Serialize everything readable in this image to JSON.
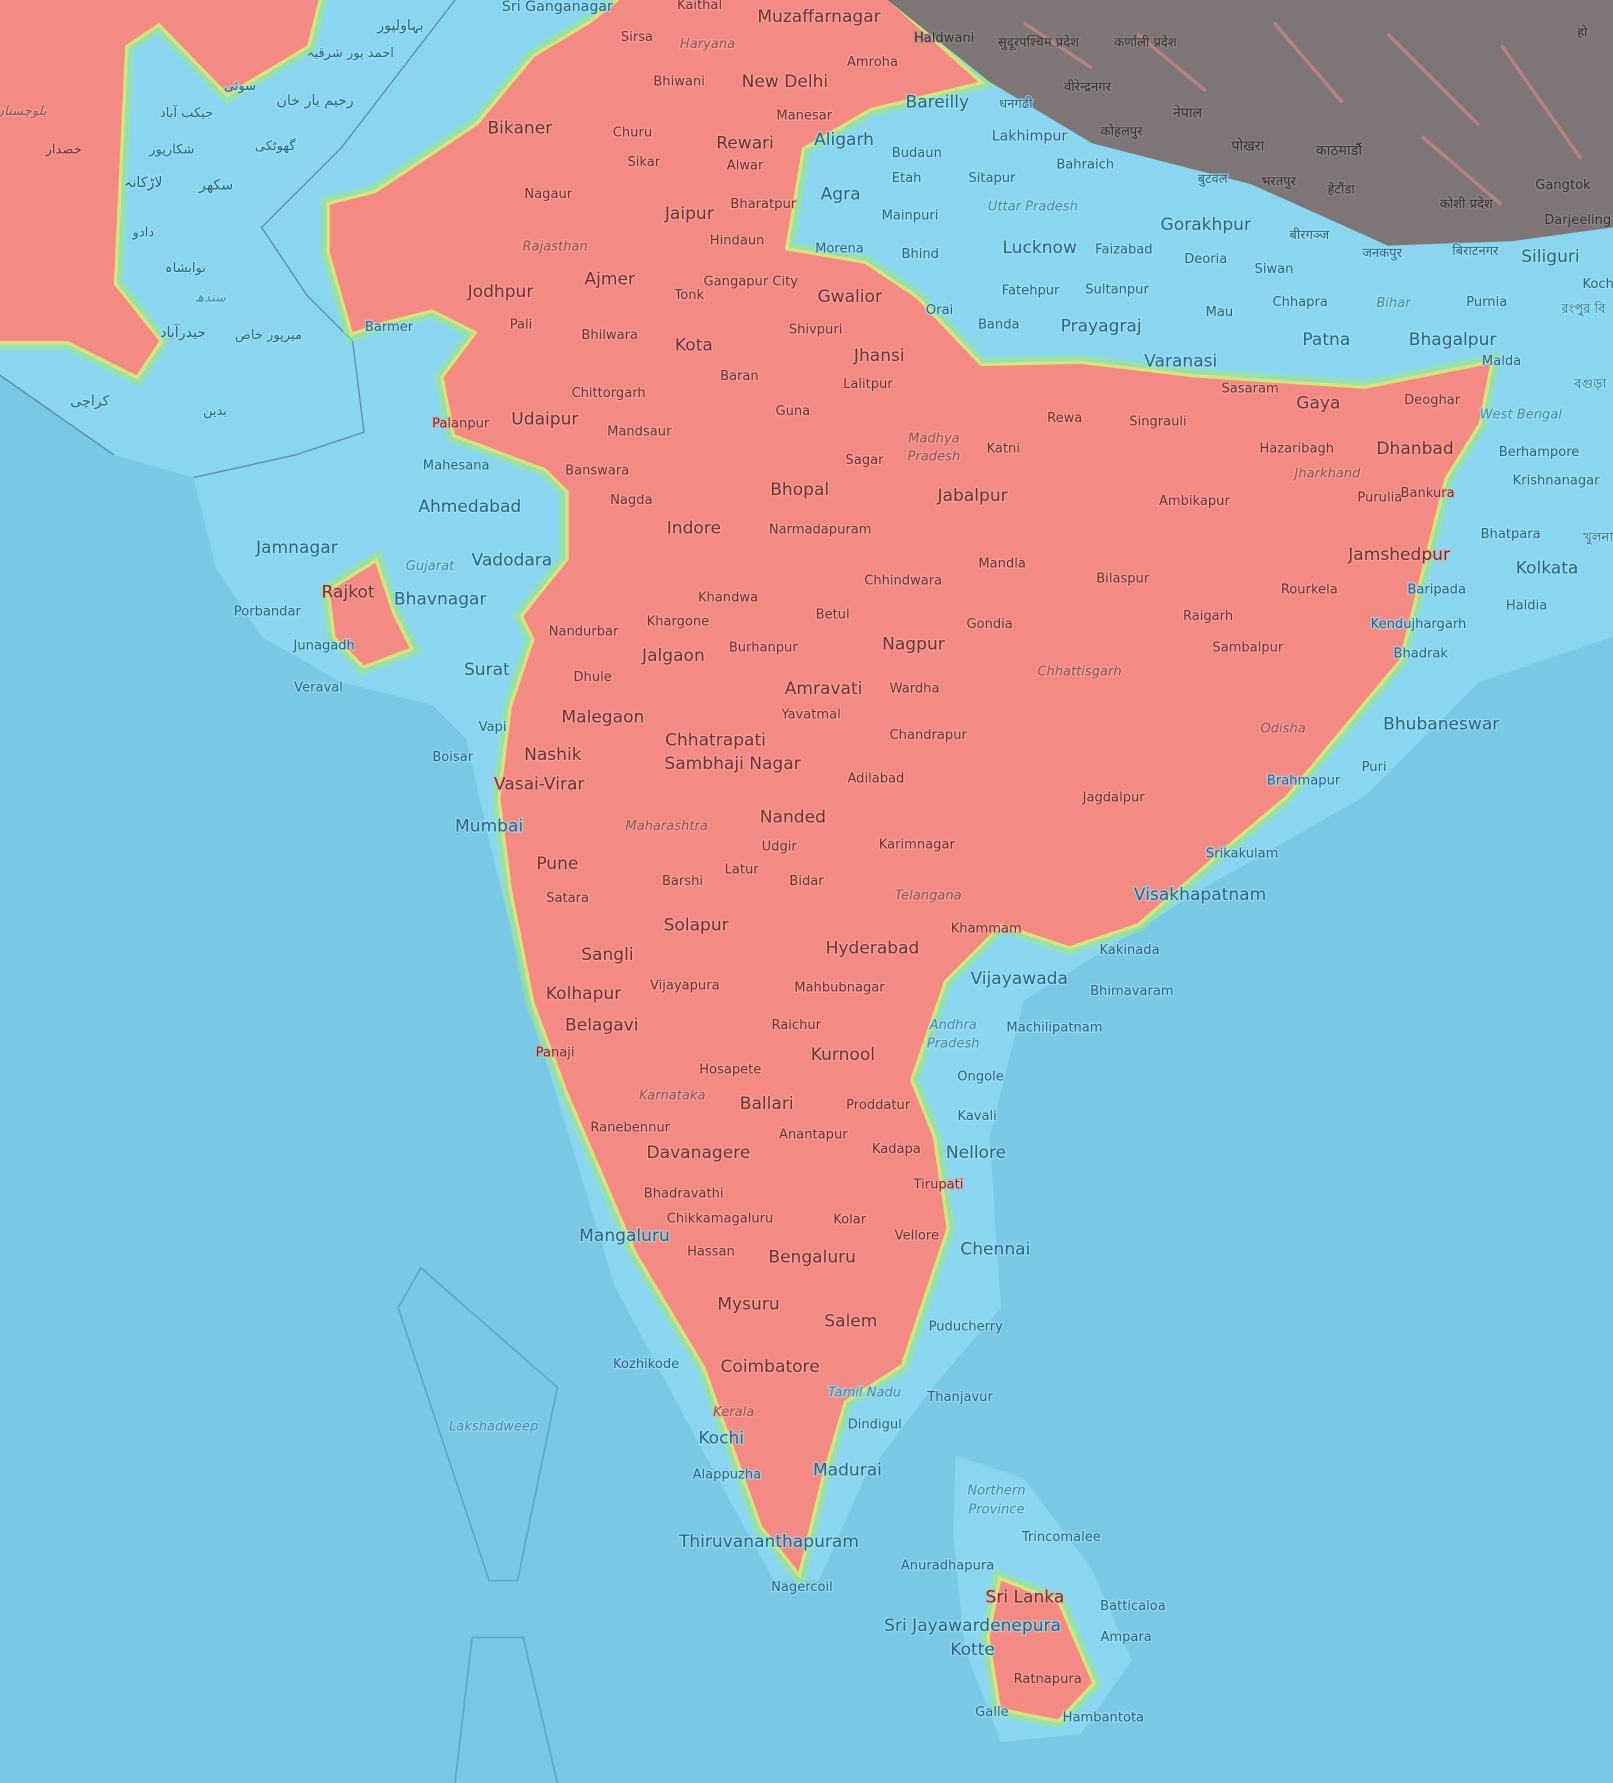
{
  "map": {
    "colors": {
      "sea": "#78c8e6",
      "land_low": "#8ad6f0",
      "high": "#f38b84",
      "edge_green": "#9ee87c",
      "edge_yellow": "#eae46c",
      "mountain": "#7e7676"
    },
    "legend": "none"
  },
  "labels": [
    {
      "text": "بہاولپور",
      "kind": "city"
    },
    {
      "text": "احمد پور شرقیہ",
      "kind": "small"
    },
    {
      "text": "سوئی",
      "kind": "small"
    },
    {
      "text": "رحیم یار خان",
      "kind": "city"
    },
    {
      "text": "جیکب آباد",
      "kind": "small"
    },
    {
      "text": "بلوچستان",
      "kind": "region"
    },
    {
      "text": "خضدار",
      "kind": "small"
    },
    {
      "text": "شکارپور",
      "kind": "small"
    },
    {
      "text": "گھوٹکی",
      "kind": "small"
    },
    {
      "text": "لاڑکانہ",
      "kind": "city"
    },
    {
      "text": "سکھر",
      "kind": "city"
    },
    {
      "text": "دادو",
      "kind": "small"
    },
    {
      "text": "نوابشاہ",
      "kind": "small"
    },
    {
      "text": "سندھ",
      "kind": "region"
    },
    {
      "text": "حیدرآباد",
      "kind": "city"
    },
    {
      "text": "میرپور خاص",
      "kind": "small"
    },
    {
      "text": "کراچی",
      "kind": "city"
    },
    {
      "text": "بدین",
      "kind": "small"
    },
    {
      "text": "सुदूरपश्चिम प्रदेश",
      "kind": "small"
    },
    {
      "text": "कर्णाली प्रदेश",
      "kind": "small"
    },
    {
      "text": "वीरेन्द्रनगर",
      "kind": "small"
    },
    {
      "text": "धनगढी",
      "kind": "small"
    },
    {
      "text": "नेपाल",
      "kind": "city"
    },
    {
      "text": "कोहलपुर",
      "kind": "small"
    },
    {
      "text": "पोखरा",
      "kind": "city"
    },
    {
      "text": "काठमाडौं",
      "kind": "city"
    },
    {
      "text": "बुटवल",
      "kind": "small"
    },
    {
      "text": "भरतपुर",
      "kind": "small"
    },
    {
      "text": "हेटौंडा",
      "kind": "small"
    },
    {
      "text": "कोशी प्रदेश",
      "kind": "small"
    },
    {
      "text": "Gangtok",
      "kind": "small"
    },
    {
      "text": "Darjeeling",
      "kind": "small"
    },
    {
      "text": "बीरगञ्ज",
      "kind": "small"
    },
    {
      "text": "जनकपुर",
      "kind": "small"
    },
    {
      "text": "बिराटनगर",
      "kind": "small"
    },
    {
      "text": "Koch",
      "kind": "small"
    },
    {
      "text": "हो",
      "kind": "small"
    },
    {
      "text": "রংপুর বি",
      "kind": "small"
    },
    {
      "text": "বগুড়া",
      "kind": "small"
    },
    {
      "text": "খুলনা",
      "kind": "small"
    },
    {
      "text": "Sri Ganganagar",
      "kind": "city"
    },
    {
      "text": "Kaithal",
      "kind": "small"
    },
    {
      "text": "Muzaffarnagar",
      "kind": "major"
    },
    {
      "text": "Haldwani",
      "kind": "small"
    },
    {
      "text": "Sirsa",
      "kind": "small"
    },
    {
      "text": "Haryana",
      "kind": "region"
    },
    {
      "text": "Amroha",
      "kind": "small"
    },
    {
      "text": "New Delhi",
      "kind": "major"
    },
    {
      "text": "Bhiwani",
      "kind": "small"
    },
    {
      "text": "Bareilly",
      "kind": "major"
    },
    {
      "text": "Manesar",
      "kind": "small"
    },
    {
      "text": "Bikaner",
      "kind": "major"
    },
    {
      "text": "Churu",
      "kind": "small"
    },
    {
      "text": "Rewari",
      "kind": "major"
    },
    {
      "text": "Aligarh",
      "kind": "major"
    },
    {
      "text": "Lakhimpur",
      "kind": "city"
    },
    {
      "text": "Budaun",
      "kind": "small"
    },
    {
      "text": "Sikar",
      "kind": "small"
    },
    {
      "text": "Alwar",
      "kind": "small"
    },
    {
      "text": "Bahraich",
      "kind": "small"
    },
    {
      "text": "Etah",
      "kind": "small"
    },
    {
      "text": "Sitapur",
      "kind": "small"
    },
    {
      "text": "Nagaur",
      "kind": "small"
    },
    {
      "text": "Jaipur",
      "kind": "major"
    },
    {
      "text": "Bharatpur",
      "kind": "small"
    },
    {
      "text": "Agra",
      "kind": "major"
    },
    {
      "text": "Mainpuri",
      "kind": "small"
    },
    {
      "text": "Uttar Pradesh",
      "kind": "region"
    },
    {
      "text": "Gorakhpur",
      "kind": "major"
    },
    {
      "text": "Hindaun",
      "kind": "small"
    },
    {
      "text": "Rajasthan",
      "kind": "region"
    },
    {
      "text": "Morena",
      "kind": "small"
    },
    {
      "text": "Bhind",
      "kind": "small"
    },
    {
      "text": "Lucknow",
      "kind": "major"
    },
    {
      "text": "Faizabad",
      "kind": "small"
    },
    {
      "text": "Deoria",
      "kind": "small"
    },
    {
      "text": "Siwan",
      "kind": "small"
    },
    {
      "text": "Gangapur City",
      "kind": "small"
    },
    {
      "text": "Ajmer",
      "kind": "major"
    },
    {
      "text": "Jodhpur",
      "kind": "major"
    },
    {
      "text": "Tonk",
      "kind": "small"
    },
    {
      "text": "Gwalior",
      "kind": "major"
    },
    {
      "text": "Fatehpur",
      "kind": "small"
    },
    {
      "text": "Sultanpur",
      "kind": "small"
    },
    {
      "text": "Chhapra",
      "kind": "small"
    },
    {
      "text": "Bihar",
      "kind": "region"
    },
    {
      "text": "Purnia",
      "kind": "small"
    },
    {
      "text": "Siliguri",
      "kind": "major"
    },
    {
      "text": "Orai",
      "kind": "small"
    },
    {
      "text": "Mau",
      "kind": "small"
    },
    {
      "text": "Pali",
      "kind": "small"
    },
    {
      "text": "Barmer",
      "kind": "small"
    },
    {
      "text": "Bhilwara",
      "kind": "small"
    },
    {
      "text": "Kota",
      "kind": "major"
    },
    {
      "text": "Shivpuri",
      "kind": "small"
    },
    {
      "text": "Banda",
      "kind": "small"
    },
    {
      "text": "Prayagraj",
      "kind": "major"
    },
    {
      "text": "Patna",
      "kind": "major"
    },
    {
      "text": "Bhagalpur",
      "kind": "major"
    },
    {
      "text": "Jhansi",
      "kind": "major"
    },
    {
      "text": "Varanasi",
      "kind": "major"
    },
    {
      "text": "Malda",
      "kind": "small"
    },
    {
      "text": "Baran",
      "kind": "small"
    },
    {
      "text": "Lalitpur",
      "kind": "small"
    },
    {
      "text": "Chittorgarh",
      "kind": "small"
    },
    {
      "text": "Sasaram",
      "kind": "small"
    },
    {
      "text": "Gaya",
      "kind": "major"
    },
    {
      "text": "Deoghar",
      "kind": "small"
    },
    {
      "text": "Guna",
      "kind": "small"
    },
    {
      "text": "Rewa",
      "kind": "small"
    },
    {
      "text": "Singrauli",
      "kind": "small"
    },
    {
      "text": "Udaipur",
      "kind": "major"
    },
    {
      "text": "Palanpur",
      "kind": "small"
    },
    {
      "text": "Mandsaur",
      "kind": "small"
    },
    {
      "text": "West Bengal",
      "kind": "region"
    },
    {
      "text": "Madhya",
      "kind": "region"
    },
    {
      "text": "Pradesh",
      "kind": "region"
    },
    {
      "text": "Katni",
      "kind": "small"
    },
    {
      "text": "Hazaribagh",
      "kind": "small"
    },
    {
      "text": "Dhanbad",
      "kind": "major"
    },
    {
      "text": "Berhampore",
      "kind": "small"
    },
    {
      "text": "Mahesana",
      "kind": "small"
    },
    {
      "text": "Banswara",
      "kind": "small"
    },
    {
      "text": "Sagar",
      "kind": "small"
    },
    {
      "text": "Jharkhand",
      "kind": "region"
    },
    {
      "text": "Krishnanagar",
      "kind": "small"
    },
    {
      "text": "Bhopal",
      "kind": "major"
    },
    {
      "text": "Jabalpur",
      "kind": "major"
    },
    {
      "text": "Purulia",
      "kind": "small"
    },
    {
      "text": "Bankura",
      "kind": "small"
    },
    {
      "text": "Ambikapur",
      "kind": "small"
    },
    {
      "text": "Ahmedabad",
      "kind": "major"
    },
    {
      "text": "Nagda",
      "kind": "small"
    },
    {
      "text": "Indore",
      "kind": "major"
    },
    {
      "text": "Narmadapuram",
      "kind": "small"
    },
    {
      "text": "Bhatpara",
      "kind": "small"
    },
    {
      "text": "Jamnagar",
      "kind": "major"
    },
    {
      "text": "Gujarat",
      "kind": "region"
    },
    {
      "text": "Vadodara",
      "kind": "major"
    },
    {
      "text": "Mandla",
      "kind": "small"
    },
    {
      "text": "Jamshedpur",
      "kind": "major"
    },
    {
      "text": "Kolkata",
      "kind": "major"
    },
    {
      "text": "Rajkot",
      "kind": "major"
    },
    {
      "text": "Bhavnagar",
      "kind": "major"
    },
    {
      "text": "Khandwa",
      "kind": "small"
    },
    {
      "text": "Chhindwara",
      "kind": "small"
    },
    {
      "text": "Bilaspur",
      "kind": "small"
    },
    {
      "text": "Rourkela",
      "kind": "small"
    },
    {
      "text": "Baripada",
      "kind": "small"
    },
    {
      "text": "Haldia",
      "kind": "small"
    },
    {
      "text": "Porbandar",
      "kind": "small"
    },
    {
      "text": "Khargone",
      "kind": "small"
    },
    {
      "text": "Betul",
      "kind": "small"
    },
    {
      "text": "Gondia",
      "kind": "small"
    },
    {
      "text": "Raigarh",
      "kind": "small"
    },
    {
      "text": "Kendujhargarh",
      "kind": "small"
    },
    {
      "text": "Nandurbar",
      "kind": "small"
    },
    {
      "text": "Junagadh",
      "kind": "small"
    },
    {
      "text": "Jalgaon",
      "kind": "major"
    },
    {
      "text": "Burhanpur",
      "kind": "small"
    },
    {
      "text": "Nagpur",
      "kind": "major"
    },
    {
      "text": "Sambalpur",
      "kind": "small"
    },
    {
      "text": "Bhadrak",
      "kind": "small"
    },
    {
      "text": "Surat",
      "kind": "major"
    },
    {
      "text": "Chhattisgarh",
      "kind": "region"
    },
    {
      "text": "Dhule",
      "kind": "small"
    },
    {
      "text": "Veraval",
      "kind": "small"
    },
    {
      "text": "Amravati",
      "kind": "major"
    },
    {
      "text": "Wardha",
      "kind": "small"
    },
    {
      "text": "Malegaon",
      "kind": "major"
    },
    {
      "text": "Yavatmal",
      "kind": "small"
    },
    {
      "text": "Bhubaneswar",
      "kind": "major"
    },
    {
      "text": "Vapi",
      "kind": "small"
    },
    {
      "text": "Odisha",
      "kind": "region"
    },
    {
      "text": "Chandrapur",
      "kind": "small"
    },
    {
      "text": "Chhatrapati",
      "kind": "major"
    },
    {
      "text": "Sambhaji Nagar",
      "kind": "major"
    },
    {
      "text": "Boisar",
      "kind": "small"
    },
    {
      "text": "Nashik",
      "kind": "major"
    },
    {
      "text": "Adilabad",
      "kind": "small"
    },
    {
      "text": "Puri",
      "kind": "small"
    },
    {
      "text": "Vasai-Virar",
      "kind": "major"
    },
    {
      "text": "Brahmapur",
      "kind": "small"
    },
    {
      "text": "Jagdalpur",
      "kind": "small"
    },
    {
      "text": "Nanded",
      "kind": "major"
    },
    {
      "text": "Mumbai",
      "kind": "major"
    },
    {
      "text": "Maharashtra",
      "kind": "region"
    },
    {
      "text": "Karimnagar",
      "kind": "small"
    },
    {
      "text": "Udgir",
      "kind": "small"
    },
    {
      "text": "Srikakulam",
      "kind": "small"
    },
    {
      "text": "Pune",
      "kind": "major"
    },
    {
      "text": "Latur",
      "kind": "small"
    },
    {
      "text": "Barshi",
      "kind": "small"
    },
    {
      "text": "Bidar",
      "kind": "small"
    },
    {
      "text": "Satara",
      "kind": "small"
    },
    {
      "text": "Telangana",
      "kind": "region"
    },
    {
      "text": "Visakhapatnam",
      "kind": "major"
    },
    {
      "text": "Solapur",
      "kind": "major"
    },
    {
      "text": "Khammam",
      "kind": "small"
    },
    {
      "text": "Hyderabad",
      "kind": "major"
    },
    {
      "text": "Kakinada",
      "kind": "small"
    },
    {
      "text": "Sangli",
      "kind": "major"
    },
    {
      "text": "Vijayawada",
      "kind": "major"
    },
    {
      "text": "Vijayapura",
      "kind": "small"
    },
    {
      "text": "Mahbubnagar",
      "kind": "small"
    },
    {
      "text": "Bhimavaram",
      "kind": "small"
    },
    {
      "text": "Kolhapur",
      "kind": "major"
    },
    {
      "text": "Belagavi",
      "kind": "major"
    },
    {
      "text": "Raichur",
      "kind": "small"
    },
    {
      "text": "Machilipatnam",
      "kind": "small"
    },
    {
      "text": "Andhra",
      "kind": "region"
    },
    {
      "text": "Pradesh",
      "kind": "region"
    },
    {
      "text": "Panaji",
      "kind": "small"
    },
    {
      "text": "Kurnool",
      "kind": "major"
    },
    {
      "text": "Hosapete",
      "kind": "small"
    },
    {
      "text": "Ongole",
      "kind": "small"
    },
    {
      "text": "Karnataka",
      "kind": "region"
    },
    {
      "text": "Ballari",
      "kind": "major"
    },
    {
      "text": "Proddatur",
      "kind": "small"
    },
    {
      "text": "Kavali",
      "kind": "small"
    },
    {
      "text": "Ranebennur",
      "kind": "small"
    },
    {
      "text": "Anantapur",
      "kind": "small"
    },
    {
      "text": "Davanagere",
      "kind": "major"
    },
    {
      "text": "Kadapa",
      "kind": "small"
    },
    {
      "text": "Nellore",
      "kind": "major"
    },
    {
      "text": "Tirupati",
      "kind": "small"
    },
    {
      "text": "Bhadravathi",
      "kind": "small"
    },
    {
      "text": "Chikkamagaluru",
      "kind": "small"
    },
    {
      "text": "Kolar",
      "kind": "small"
    },
    {
      "text": "Mangaluru",
      "kind": "major"
    },
    {
      "text": "Vellore",
      "kind": "small"
    },
    {
      "text": "Hassan",
      "kind": "small"
    },
    {
      "text": "Bengaluru",
      "kind": "major"
    },
    {
      "text": "Chennai",
      "kind": "major"
    },
    {
      "text": "Mysuru",
      "kind": "major"
    },
    {
      "text": "Salem",
      "kind": "major"
    },
    {
      "text": "Puducherry",
      "kind": "small"
    },
    {
      "text": "Kozhikode",
      "kind": "small"
    },
    {
      "text": "Coimbatore",
      "kind": "major"
    },
    {
      "text": "Tamil Nadu",
      "kind": "region"
    },
    {
      "text": "Thanjavur",
      "kind": "small"
    },
    {
      "text": "Kerala",
      "kind": "region"
    },
    {
      "text": "Lakshadweep",
      "kind": "region"
    },
    {
      "text": "Dindigul",
      "kind": "small"
    },
    {
      "text": "Kochi",
      "kind": "major"
    },
    {
      "text": "Alappuzha",
      "kind": "small"
    },
    {
      "text": "Madurai",
      "kind": "major"
    },
    {
      "text": "Northern",
      "kind": "region"
    },
    {
      "text": "Province",
      "kind": "region"
    },
    {
      "text": "Trincomalee",
      "kind": "small"
    },
    {
      "text": "Thiruvananthapuram",
      "kind": "major"
    },
    {
      "text": "Anuradhapura",
      "kind": "small"
    },
    {
      "text": "Nagercoil",
      "kind": "small"
    },
    {
      "text": "Sri Lanka",
      "kind": "major"
    },
    {
      "text": "Batticaloa",
      "kind": "small"
    },
    {
      "text": "Sri Jayawardenepura",
      "kind": "major"
    },
    {
      "text": "Kotte",
      "kind": "major"
    },
    {
      "text": "Ampara",
      "kind": "small"
    },
    {
      "text": "Ratnapura",
      "kind": "small"
    },
    {
      "text": "Galle",
      "kind": "small"
    },
    {
      "text": "Hambantota",
      "kind": "small"
    }
  ]
}
